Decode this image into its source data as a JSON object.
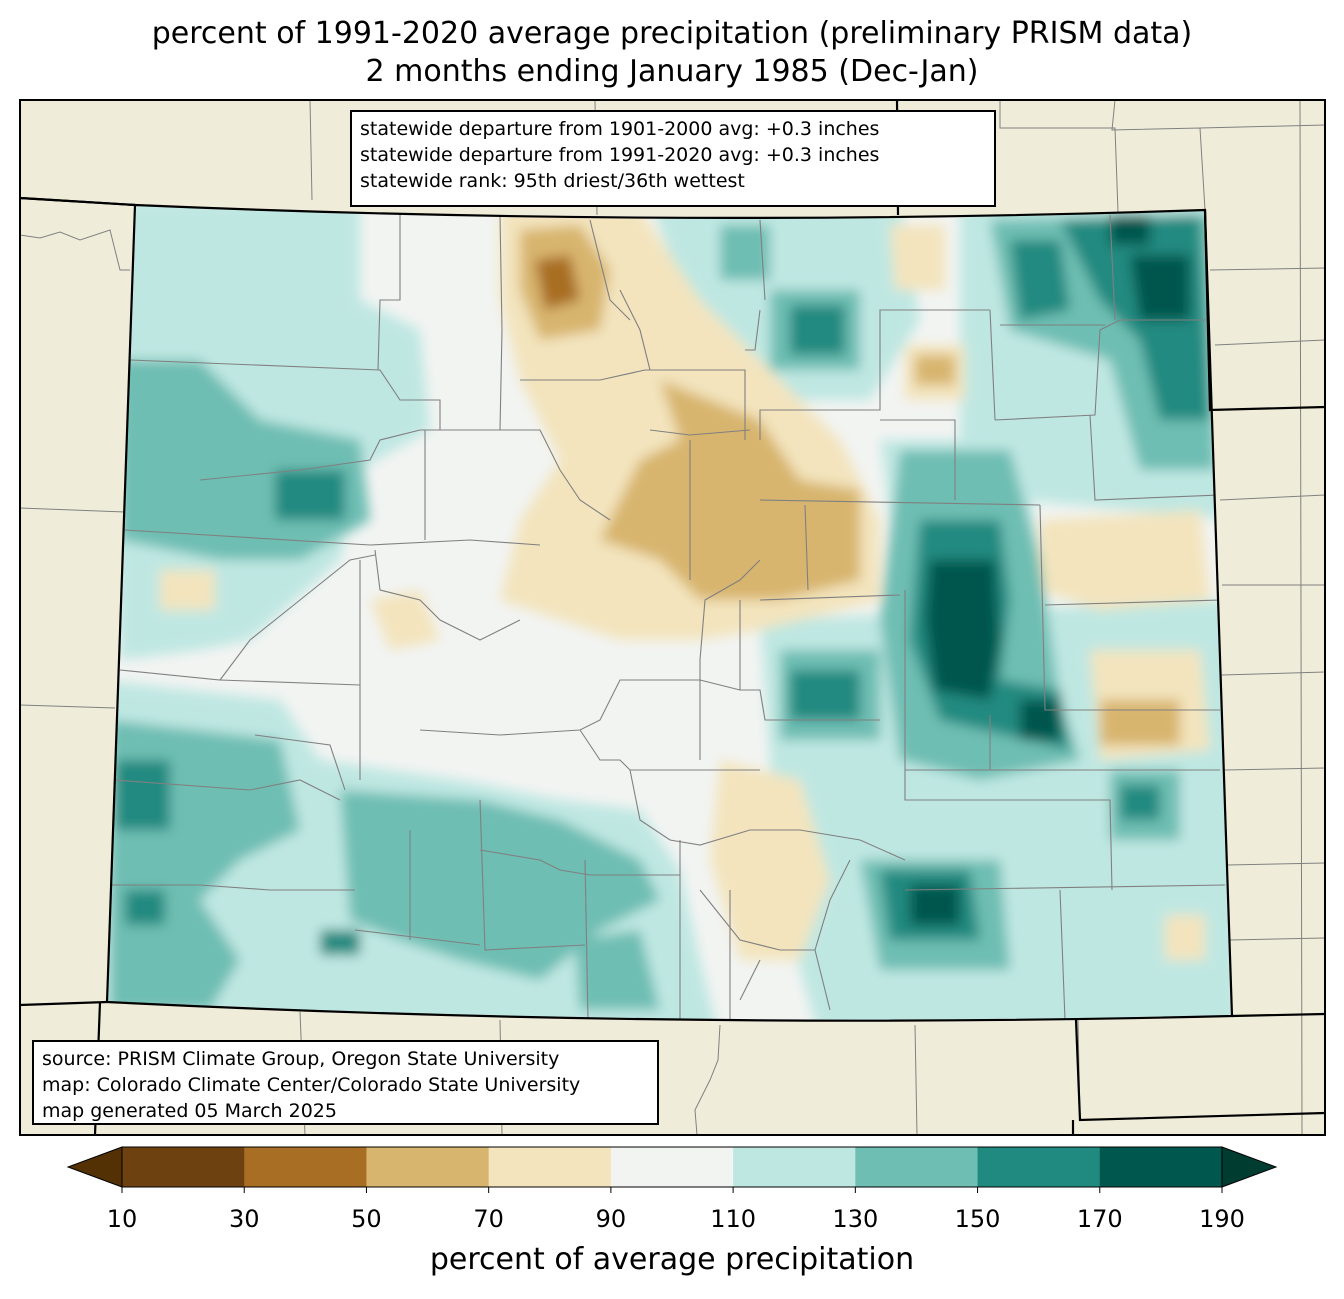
{
  "title": {
    "line1": "percent of 1991-2020 average precipitation (preliminary PRISM data)",
    "line2": "2 months ending January 1985 (Dec-Jan)"
  },
  "stats_box": {
    "line1": "statewide departure from 1901-2000 avg: +0.3 inches",
    "line2": "statewide departure from 1991-2020 avg: +0.3 inches",
    "line3": "statewide rank: 95th driest/36th wettest"
  },
  "source_box": {
    "line1": "source: PRISM Climate Group, Oregon State University",
    "line2": "map: Colorado Climate Center/Colorado State University",
    "line3": "map generated 05 March 2025"
  },
  "colorbar": {
    "label": "percent of average precipitation",
    "ticks": [
      "10",
      "30",
      "50",
      "70",
      "90",
      "110",
      "130",
      "150",
      "170",
      "190"
    ],
    "colors": [
      "#6e4210",
      "#a86e24",
      "#d8b56e",
      "#f3e4bd",
      "#f2f4f2",
      "#bfe7e2",
      "#6ebeb3",
      "#208a80",
      "#00574d"
    ],
    "under_color": "#543005",
    "over_color": "#003c30"
  },
  "map_colors": {
    "land": "#efedda",
    "state_border": "#000000",
    "county_border": "#808080"
  }
}
